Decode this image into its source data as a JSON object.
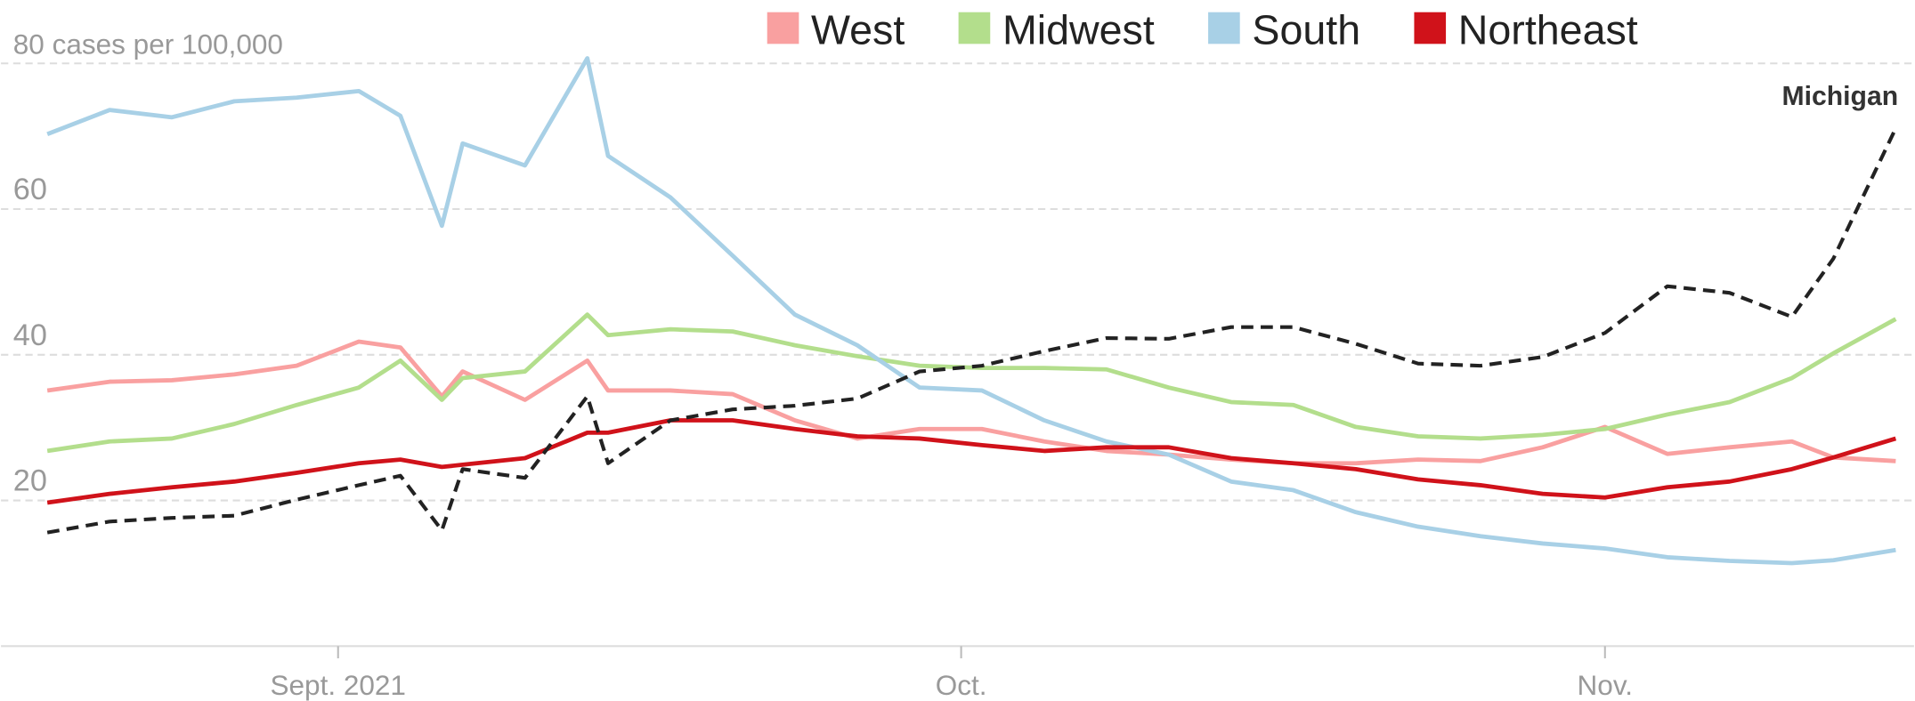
{
  "chart_data": {
    "type": "line",
    "x": [
      0,
      3,
      6,
      9,
      12,
      15,
      17,
      19,
      20,
      23,
      26,
      27,
      30,
      33,
      36,
      39,
      42,
      45,
      48,
      51,
      54,
      57,
      60,
      63,
      66,
      69,
      72,
      75,
      78,
      81,
      84,
      86,
      89
    ],
    "xlim": [
      0,
      89
    ],
    "xticks": [
      {
        "value": 14,
        "label": "Sept. 2021"
      },
      {
        "value": 44,
        "label": "Oct."
      },
      {
        "value": 75,
        "label": "Nov."
      }
    ],
    "ylim": [
      0,
      80
    ],
    "yticks": [
      20,
      40,
      60,
      {
        "value": 80,
        "label": "80 cases per 100,000"
      }
    ],
    "grid": true,
    "legend": "top",
    "series": [
      {
        "name": "West",
        "color": "#f9a0a0",
        "values": [
          35.1,
          36.3,
          36.5,
          37.3,
          38.5,
          41.8,
          41,
          34.3,
          37.7,
          33.8,
          39.2,
          35.1,
          35.1,
          34.6,
          31,
          28.5,
          29.8,
          29.8,
          28.1,
          26.8,
          26.3,
          25.6,
          25.1,
          25.1,
          25.6,
          25.4,
          27.3,
          30.1,
          26.4,
          27.3,
          28.1,
          25.9,
          25.4
        ]
      },
      {
        "name": "Midwest",
        "color": "#b3de8c",
        "values": [
          26.8,
          28.1,
          28.5,
          30.5,
          33.1,
          35.5,
          39.2,
          33.8,
          36.8,
          37.7,
          45.5,
          42.7,
          43.5,
          43.2,
          41.3,
          39.8,
          38.5,
          38.2,
          38.2,
          38,
          35.5,
          33.5,
          33.1,
          30.1,
          28.8,
          28.5,
          29,
          29.8,
          31.8,
          33.5,
          36.8,
          40.2,
          44.9
        ]
      },
      {
        "name": "South",
        "color": "#a8d0e6",
        "values": [
          70.3,
          73.6,
          72.6,
          74.8,
          75.3,
          76.2,
          72.8,
          57.7,
          69,
          66,
          80.7,
          67.3,
          61.6,
          53.6,
          45.5,
          41.3,
          35.5,
          35.1,
          31,
          28.1,
          26.3,
          22.6,
          21.4,
          18.4,
          16.4,
          15.1,
          14.1,
          13.4,
          12.2,
          11.7,
          11.4,
          11.8,
          13.2
        ]
      },
      {
        "name": "Northeast",
        "color": "#d0121a",
        "values": [
          19.7,
          20.9,
          21.8,
          22.6,
          23.8,
          25.1,
          25.6,
          24.6,
          24.9,
          25.8,
          29.3,
          29.3,
          31,
          31,
          29.8,
          28.8,
          28.5,
          27.6,
          26.8,
          27.3,
          27.3,
          25.8,
          25.1,
          24.3,
          22.9,
          22.1,
          20.9,
          20.4,
          21.8,
          22.6,
          24.3,
          25.9,
          28.5
        ]
      },
      {
        "name": "Michigan",
        "color": "#222222",
        "dashed": true,
        "in_legend": false,
        "values": [
          15.6,
          17.1,
          17.6,
          17.9,
          20.1,
          22.1,
          23.4,
          15.9,
          24.3,
          23.1,
          34.3,
          25.1,
          31,
          32.5,
          33,
          34,
          37.7,
          38.5,
          40.5,
          42.3,
          42.2,
          43.8,
          43.8,
          41.5,
          38.8,
          38.5,
          39.7,
          43,
          49.4,
          48.5,
          45.2,
          53.2,
          71.1
        ]
      }
    ]
  }
}
